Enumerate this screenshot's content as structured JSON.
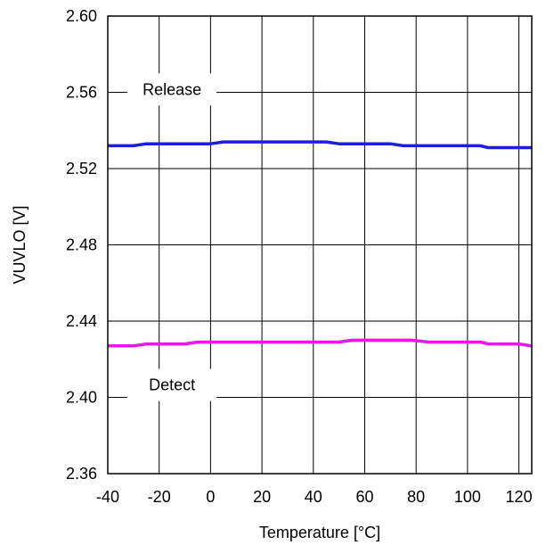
{
  "chart_data": {
    "type": "line",
    "xlabel": "Temperature [°C]",
    "ylabel": "VUVLO [V]",
    "xlim": [
      -40,
      125
    ],
    "ylim": [
      2.36,
      2.6
    ],
    "xticks": [
      -40,
      -20,
      0,
      20,
      40,
      60,
      80,
      100,
      120
    ],
    "xtick_labels": [
      "-40",
      "-20",
      "0",
      "20",
      "40",
      "60",
      "80",
      "100",
      "120"
    ],
    "yticks": [
      2.36,
      2.4,
      2.44,
      2.48,
      2.52,
      2.56,
      2.6
    ],
    "ytick_labels": [
      "2.36",
      "2.40",
      "2.44",
      "2.48",
      "2.52",
      "2.56",
      "2.60"
    ],
    "grid": true,
    "series": [
      {
        "name": "Release",
        "color": "#1f1fd6",
        "x": [
          -40,
          -30,
          -25,
          0,
          5,
          45,
          50,
          70,
          75,
          105,
          108,
          125
        ],
        "y": [
          2.532,
          2.532,
          2.533,
          2.533,
          2.534,
          2.534,
          2.533,
          2.533,
          2.532,
          2.532,
          2.531,
          2.531
        ]
      },
      {
        "name": "Detect",
        "color": "#e619e6",
        "x": [
          -40,
          -30,
          -25,
          -10,
          -5,
          50,
          55,
          78,
          85,
          105,
          108,
          120,
          125
        ],
        "y": [
          2.427,
          2.427,
          2.428,
          2.428,
          2.429,
          2.429,
          2.43,
          2.43,
          2.429,
          2.429,
          2.428,
          2.428,
          2.427
        ]
      }
    ],
    "annotations": [
      {
        "text": "Release",
        "x": -15,
        "y": 2.5615
      },
      {
        "text": "Detect",
        "x": -15,
        "y": 2.4065
      }
    ]
  }
}
